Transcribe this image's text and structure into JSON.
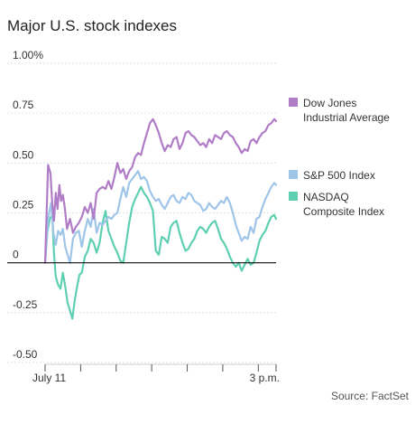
{
  "chart_data": {
    "type": "line",
    "title": "Major U.S. stock indexes",
    "source": "Source: FactSet",
    "y_ticks": [
      {
        "value": 1.0,
        "label": "1.00%"
      },
      {
        "value": 0.75,
        "label": "0.75"
      },
      {
        "value": 0.5,
        "label": "0.50"
      },
      {
        "value": 0.25,
        "label": "0.25"
      },
      {
        "value": 0.0,
        "label": "0"
      },
      {
        "value": -0.25,
        "label": "-0.25"
      },
      {
        "value": -0.5,
        "label": "-0.50"
      }
    ],
    "ylim": [
      -0.5,
      1.0
    ],
    "x_range_minutes": [
      0,
      390
    ],
    "x_tick_minutes": [
      0,
      60,
      120,
      180,
      240,
      300,
      360,
      390
    ],
    "x_labels": [
      {
        "minute": 0,
        "label": "July 11"
      },
      {
        "minute": 360,
        "label": "3 p.m."
      }
    ],
    "grid": "horizontal",
    "series": [
      {
        "name": "Dow Jones Industrial Average",
        "legend_lines": [
          "Dow Jones",
          "Industrial Average"
        ],
        "color": "#b07cc6",
        "x": [
          0,
          5,
          9,
          12,
          15,
          18,
          21,
          24,
          27,
          30,
          33,
          37,
          42,
          47,
          52,
          57,
          62,
          67,
          72,
          77,
          82,
          87,
          92,
          97,
          102,
          107,
          112,
          117,
          122,
          127,
          132,
          137,
          142,
          147,
          152,
          157,
          162,
          167,
          172,
          177,
          182,
          187,
          192,
          197,
          202,
          207,
          212,
          217,
          222,
          227,
          232,
          237,
          242,
          247,
          252,
          257,
          262,
          267,
          272,
          277,
          282,
          287,
          292,
          297,
          302,
          307,
          312,
          317,
          322,
          327,
          332,
          337,
          342,
          347,
          352,
          357,
          362,
          367,
          372,
          377,
          382,
          387,
          390
        ],
        "y": [
          0.0,
          0.49,
          0.45,
          0.3,
          0.21,
          0.35,
          0.27,
          0.39,
          0.31,
          0.34,
          0.28,
          0.17,
          0.22,
          0.15,
          0.18,
          0.2,
          0.23,
          0.28,
          0.25,
          0.3,
          0.22,
          0.35,
          0.37,
          0.38,
          0.37,
          0.41,
          0.37,
          0.43,
          0.5,
          0.45,
          0.47,
          0.42,
          0.46,
          0.48,
          0.53,
          0.55,
          0.54,
          0.6,
          0.65,
          0.7,
          0.72,
          0.69,
          0.65,
          0.6,
          0.56,
          0.59,
          0.58,
          0.62,
          0.63,
          0.57,
          0.6,
          0.65,
          0.66,
          0.64,
          0.63,
          0.61,
          0.59,
          0.6,
          0.58,
          0.62,
          0.6,
          0.64,
          0.63,
          0.62,
          0.65,
          0.66,
          0.64,
          0.63,
          0.6,
          0.58,
          0.55,
          0.57,
          0.56,
          0.61,
          0.62,
          0.6,
          0.63,
          0.65,
          0.66,
          0.69,
          0.7,
          0.72,
          0.71
        ]
      },
      {
        "name": "S&P 500 Index",
        "legend_lines": [
          "S&P 500 Index"
        ],
        "color": "#9fc5e8",
        "x": [
          0,
          5,
          10,
          14,
          18,
          22,
          26,
          30,
          34,
          38,
          42,
          47,
          52,
          57,
          62,
          67,
          72,
          77,
          82,
          87,
          92,
          97,
          102,
          107,
          112,
          117,
          122,
          127,
          132,
          137,
          142,
          147,
          152,
          157,
          162,
          167,
          172,
          177,
          182,
          187,
          192,
          197,
          202,
          207,
          212,
          217,
          222,
          227,
          232,
          237,
          242,
          247,
          252,
          257,
          262,
          267,
          272,
          277,
          282,
          287,
          292,
          297,
          302,
          307,
          312,
          317,
          322,
          327,
          332,
          337,
          342,
          347,
          352,
          357,
          362,
          367,
          372,
          377,
          382,
          387,
          390
        ],
        "y": [
          0.0,
          0.22,
          0.3,
          0.15,
          0.09,
          0.16,
          0.14,
          0.17,
          0.08,
          0.04,
          0.0,
          0.12,
          0.15,
          0.16,
          0.08,
          0.16,
          0.22,
          0.18,
          0.27,
          0.15,
          0.2,
          0.19,
          0.21,
          0.23,
          0.22,
          0.24,
          0.25,
          0.32,
          0.38,
          0.33,
          0.4,
          0.42,
          0.44,
          0.46,
          0.42,
          0.43,
          0.41,
          0.36,
          0.33,
          0.31,
          0.32,
          0.29,
          0.27,
          0.3,
          0.33,
          0.34,
          0.31,
          0.3,
          0.33,
          0.32,
          0.35,
          0.34,
          0.31,
          0.3,
          0.29,
          0.26,
          0.27,
          0.3,
          0.28,
          0.27,
          0.29,
          0.31,
          0.3,
          0.33,
          0.3,
          0.25,
          0.19,
          0.15,
          0.11,
          0.13,
          0.12,
          0.18,
          0.15,
          0.22,
          0.23,
          0.28,
          0.32,
          0.35,
          0.38,
          0.4,
          0.39
        ]
      },
      {
        "name": "NASDAQ Composite Index",
        "legend_lines": [
          "NASDAQ",
          "Composite Index"
        ],
        "color": "#5ecfb1",
        "x": [
          0,
          4,
          8,
          12,
          15,
          18,
          22,
          26,
          30,
          34,
          38,
          42,
          46,
          50,
          54,
          58,
          62,
          67,
          72,
          77,
          82,
          87,
          92,
          97,
          102,
          107,
          112,
          117,
          122,
          127,
          132,
          137,
          142,
          147,
          152,
          157,
          162,
          167,
          172,
          177,
          182,
          187,
          192,
          197,
          202,
          207,
          212,
          217,
          222,
          227,
          232,
          237,
          242,
          247,
          252,
          257,
          262,
          267,
          272,
          277,
          282,
          287,
          292,
          297,
          302,
          307,
          312,
          317,
          322,
          327,
          332,
          337,
          342,
          347,
          352,
          357,
          362,
          367,
          372,
          377,
          382,
          387,
          390
        ],
        "y": [
          0.0,
          0.16,
          0.22,
          0.24,
          0.05,
          -0.07,
          -0.11,
          -0.13,
          -0.05,
          -0.12,
          -0.2,
          -0.24,
          -0.28,
          -0.19,
          -0.12,
          -0.06,
          -0.05,
          0.03,
          0.06,
          0.12,
          0.1,
          0.05,
          0.1,
          0.2,
          0.26,
          0.16,
          0.12,
          0.08,
          0.05,
          0.01,
          0.0,
          0.1,
          0.2,
          0.28,
          0.32,
          0.35,
          0.38,
          0.35,
          0.33,
          0.3,
          0.26,
          0.06,
          0.04,
          0.13,
          0.12,
          0.1,
          0.18,
          0.2,
          0.21,
          0.15,
          0.1,
          0.06,
          0.07,
          0.1,
          0.12,
          0.16,
          0.18,
          0.17,
          0.15,
          0.18,
          0.2,
          0.21,
          0.17,
          0.12,
          0.1,
          0.07,
          0.03,
          0.0,
          -0.02,
          0.0,
          -0.04,
          -0.01,
          0.02,
          -0.01,
          0.0,
          0.05,
          0.11,
          0.14,
          0.16,
          0.2,
          0.23,
          0.24,
          0.22
        ]
      }
    ]
  }
}
